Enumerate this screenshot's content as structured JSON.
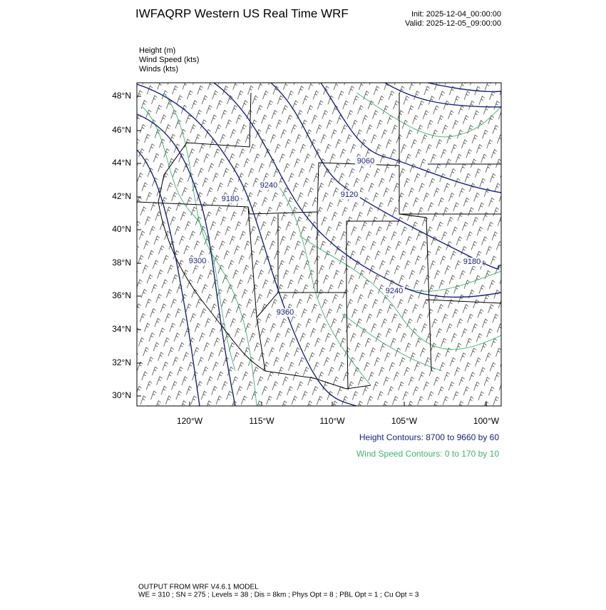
{
  "header": {
    "title": "IWFAQRP Western US Real Time WRF",
    "init": "Init: 2025-12-04_00:00:00",
    "valid": "Valid: 2025-12-05_09:00:00"
  },
  "fields": [
    "Height   (m)",
    "Wind Speed   (kts)",
    "Winds   (kts)"
  ],
  "map": {
    "lat_labels": [
      "48°N",
      "46°N",
      "44°N",
      "42°N",
      "40°N",
      "38°N",
      "36°N",
      "34°N",
      "32°N",
      "30°N"
    ],
    "lon_labels": [
      "120°W",
      "115°W",
      "110°W",
      "105°W",
      "100°W"
    ],
    "contour_labels": [
      9240,
      9180,
      9120,
      9060,
      9300,
      9360,
      9240,
      9180
    ]
  },
  "legend": {
    "height": "Height Contours: 8700 to 9660 by 60",
    "wind": "Wind Speed Contours: 0 to 170 by 10"
  },
  "footer": {
    "line1": "OUTPUT FROM WRF V4.6.1 MODEL",
    "line2": "WE = 310 ; SN = 275 ; Levels = 38 ; Dis = 8km ; Phys Opt = 8 ; PBL Opt = 1 ; Cu Opt = 3"
  }
}
